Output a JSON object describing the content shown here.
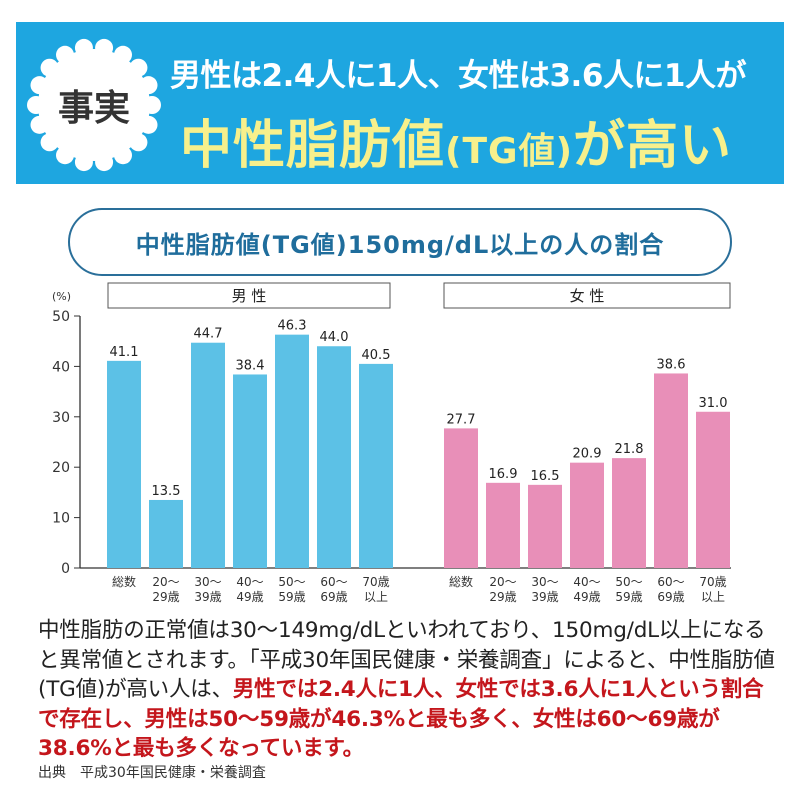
{
  "header": {
    "badge": "事実",
    "line1": "男性は2.4人に1人、女性は3.6人に1人が",
    "line2_main": "中性脂肪値",
    "line2_paren": "(TG値)",
    "line2_tail": "が高い",
    "colors": {
      "banner": "#1ea6e0",
      "line2": "#f7f08c"
    }
  },
  "subtitle": "中性脂肪値(TG値)150mg/dL以上の人の割合",
  "chart_data": [
    {
      "type": "bar",
      "title": "男 性",
      "ylabel": "(%)",
      "ylim": [
        0,
        50
      ],
      "yticks": [
        "0",
        "10",
        "20",
        "30",
        "40",
        "50"
      ],
      "categories": [
        [
          "総数",
          ""
        ],
        [
          "20～",
          "29歳"
        ],
        [
          "30～",
          "39歳"
        ],
        [
          "40～",
          "49歳"
        ],
        [
          "50～",
          "59歳"
        ],
        [
          "60～",
          "69歳"
        ],
        [
          "70歳",
          "以上"
        ]
      ],
      "values": [
        41.1,
        13.5,
        44.7,
        38.4,
        46.3,
        44.0,
        40.5
      ],
      "labels": [
        "41.1",
        "13.5",
        "44.7",
        "38.4",
        "46.3",
        "44.0",
        "40.5"
      ],
      "color": "#5cc1e6"
    },
    {
      "type": "bar",
      "title": "女 性",
      "ylim": [
        0,
        50
      ],
      "categories": [
        [
          "総数",
          ""
        ],
        [
          "20～",
          "29歳"
        ],
        [
          "30～",
          "39歳"
        ],
        [
          "40～",
          "49歳"
        ],
        [
          "50～",
          "59歳"
        ],
        [
          "60～",
          "69歳"
        ],
        [
          "70歳",
          "以上"
        ]
      ],
      "values": [
        27.7,
        16.9,
        16.5,
        20.9,
        21.8,
        38.6,
        31.0
      ],
      "labels": [
        "27.7",
        "16.9",
        "16.5",
        "20.9",
        "21.8",
        "38.6",
        "31.0"
      ],
      "color": "#e88fb8"
    }
  ],
  "paragraph": {
    "normal": "中性脂肪の正常値は30～149mg/dLといわれており、150mg/dL以上になると異常値とされます。「平成30年国民健康・栄養調査」によると、中性脂肪値(TG値)が高い人は、",
    "highlight": "男性では2.4人に1人、女性では3.6人に1人という割合で存在し、男性は50～59歳が46.3%と最も多く、女性は60～69歳が38.6%と最も多くなっています。"
  },
  "source": "出典　平成30年国民健康・栄養調査"
}
